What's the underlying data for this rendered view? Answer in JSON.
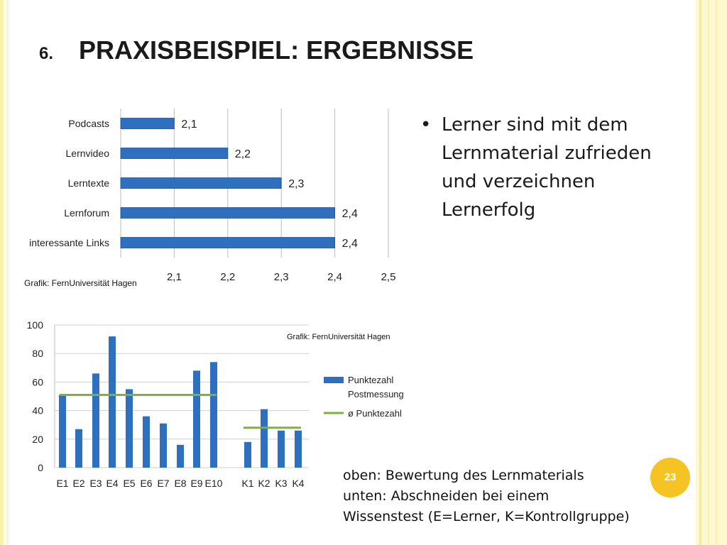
{
  "slide": {
    "number_prefix": "6.",
    "title": "PRAXISBEISPIEL: ERGEBNISSE",
    "page_number": "23"
  },
  "bullet": {
    "text": "Lerner sind mit dem Lernmaterial zufrieden und verzeichnen Lernerfolg"
  },
  "caption": {
    "line1": "oben: Bewertung des Lernmaterials",
    "line2": "unten: Abschneiden bei einem",
    "line3": "Wissenstest  (E=Lerner, K=Kontrollgruppe)"
  },
  "colors": {
    "bar": "#2e6fc0",
    "avg_line": "#7fb13c",
    "accent_badge": "#f5c322"
  },
  "chart_data": [
    {
      "type": "bar",
      "orientation": "horizontal",
      "categories": [
        "Podcasts",
        "Lernvideo",
        "Lerntexte",
        "Lernforum",
        "interessante Links"
      ],
      "values": [
        2.1,
        2.2,
        2.3,
        2.4,
        2.4
      ],
      "value_labels": [
        "2,1",
        "2,2",
        "2,3",
        "2,4",
        "2,4"
      ],
      "xlim": [
        2.0,
        2.5
      ],
      "x_ticks": [
        "2,1",
        "2,2",
        "2,3",
        "2,4",
        "2,5"
      ],
      "grid": true,
      "source": "Grafik: FernUniversität Hagen"
    },
    {
      "type": "bar",
      "categories": [
        "E1",
        "E2",
        "E3",
        "E4",
        "E5",
        "E6",
        "E7",
        "E8",
        "E9",
        "E10",
        "K1",
        "K2",
        "K3",
        "K4"
      ],
      "series": [
        {
          "name": "Punktezahl Postmessung",
          "values": [
            51,
            27,
            66,
            92,
            55,
            36,
            31,
            16,
            68,
            74,
            18,
            41,
            26,
            26
          ]
        }
      ],
      "averages": [
        {
          "name": "ø Punktezahl",
          "group": "E",
          "value": 51
        },
        {
          "name": "ø Punktezahl",
          "group": "K",
          "value": 28
        }
      ],
      "legend": [
        "Punktezahl",
        "Postmessung",
        "ø Punktezahl"
      ],
      "ylim": [
        0,
        100
      ],
      "y_ticks": [
        "0",
        "20",
        "40",
        "60",
        "80",
        "100"
      ],
      "grid": true,
      "source": "Grafik: FernUniversität Hagen"
    }
  ]
}
